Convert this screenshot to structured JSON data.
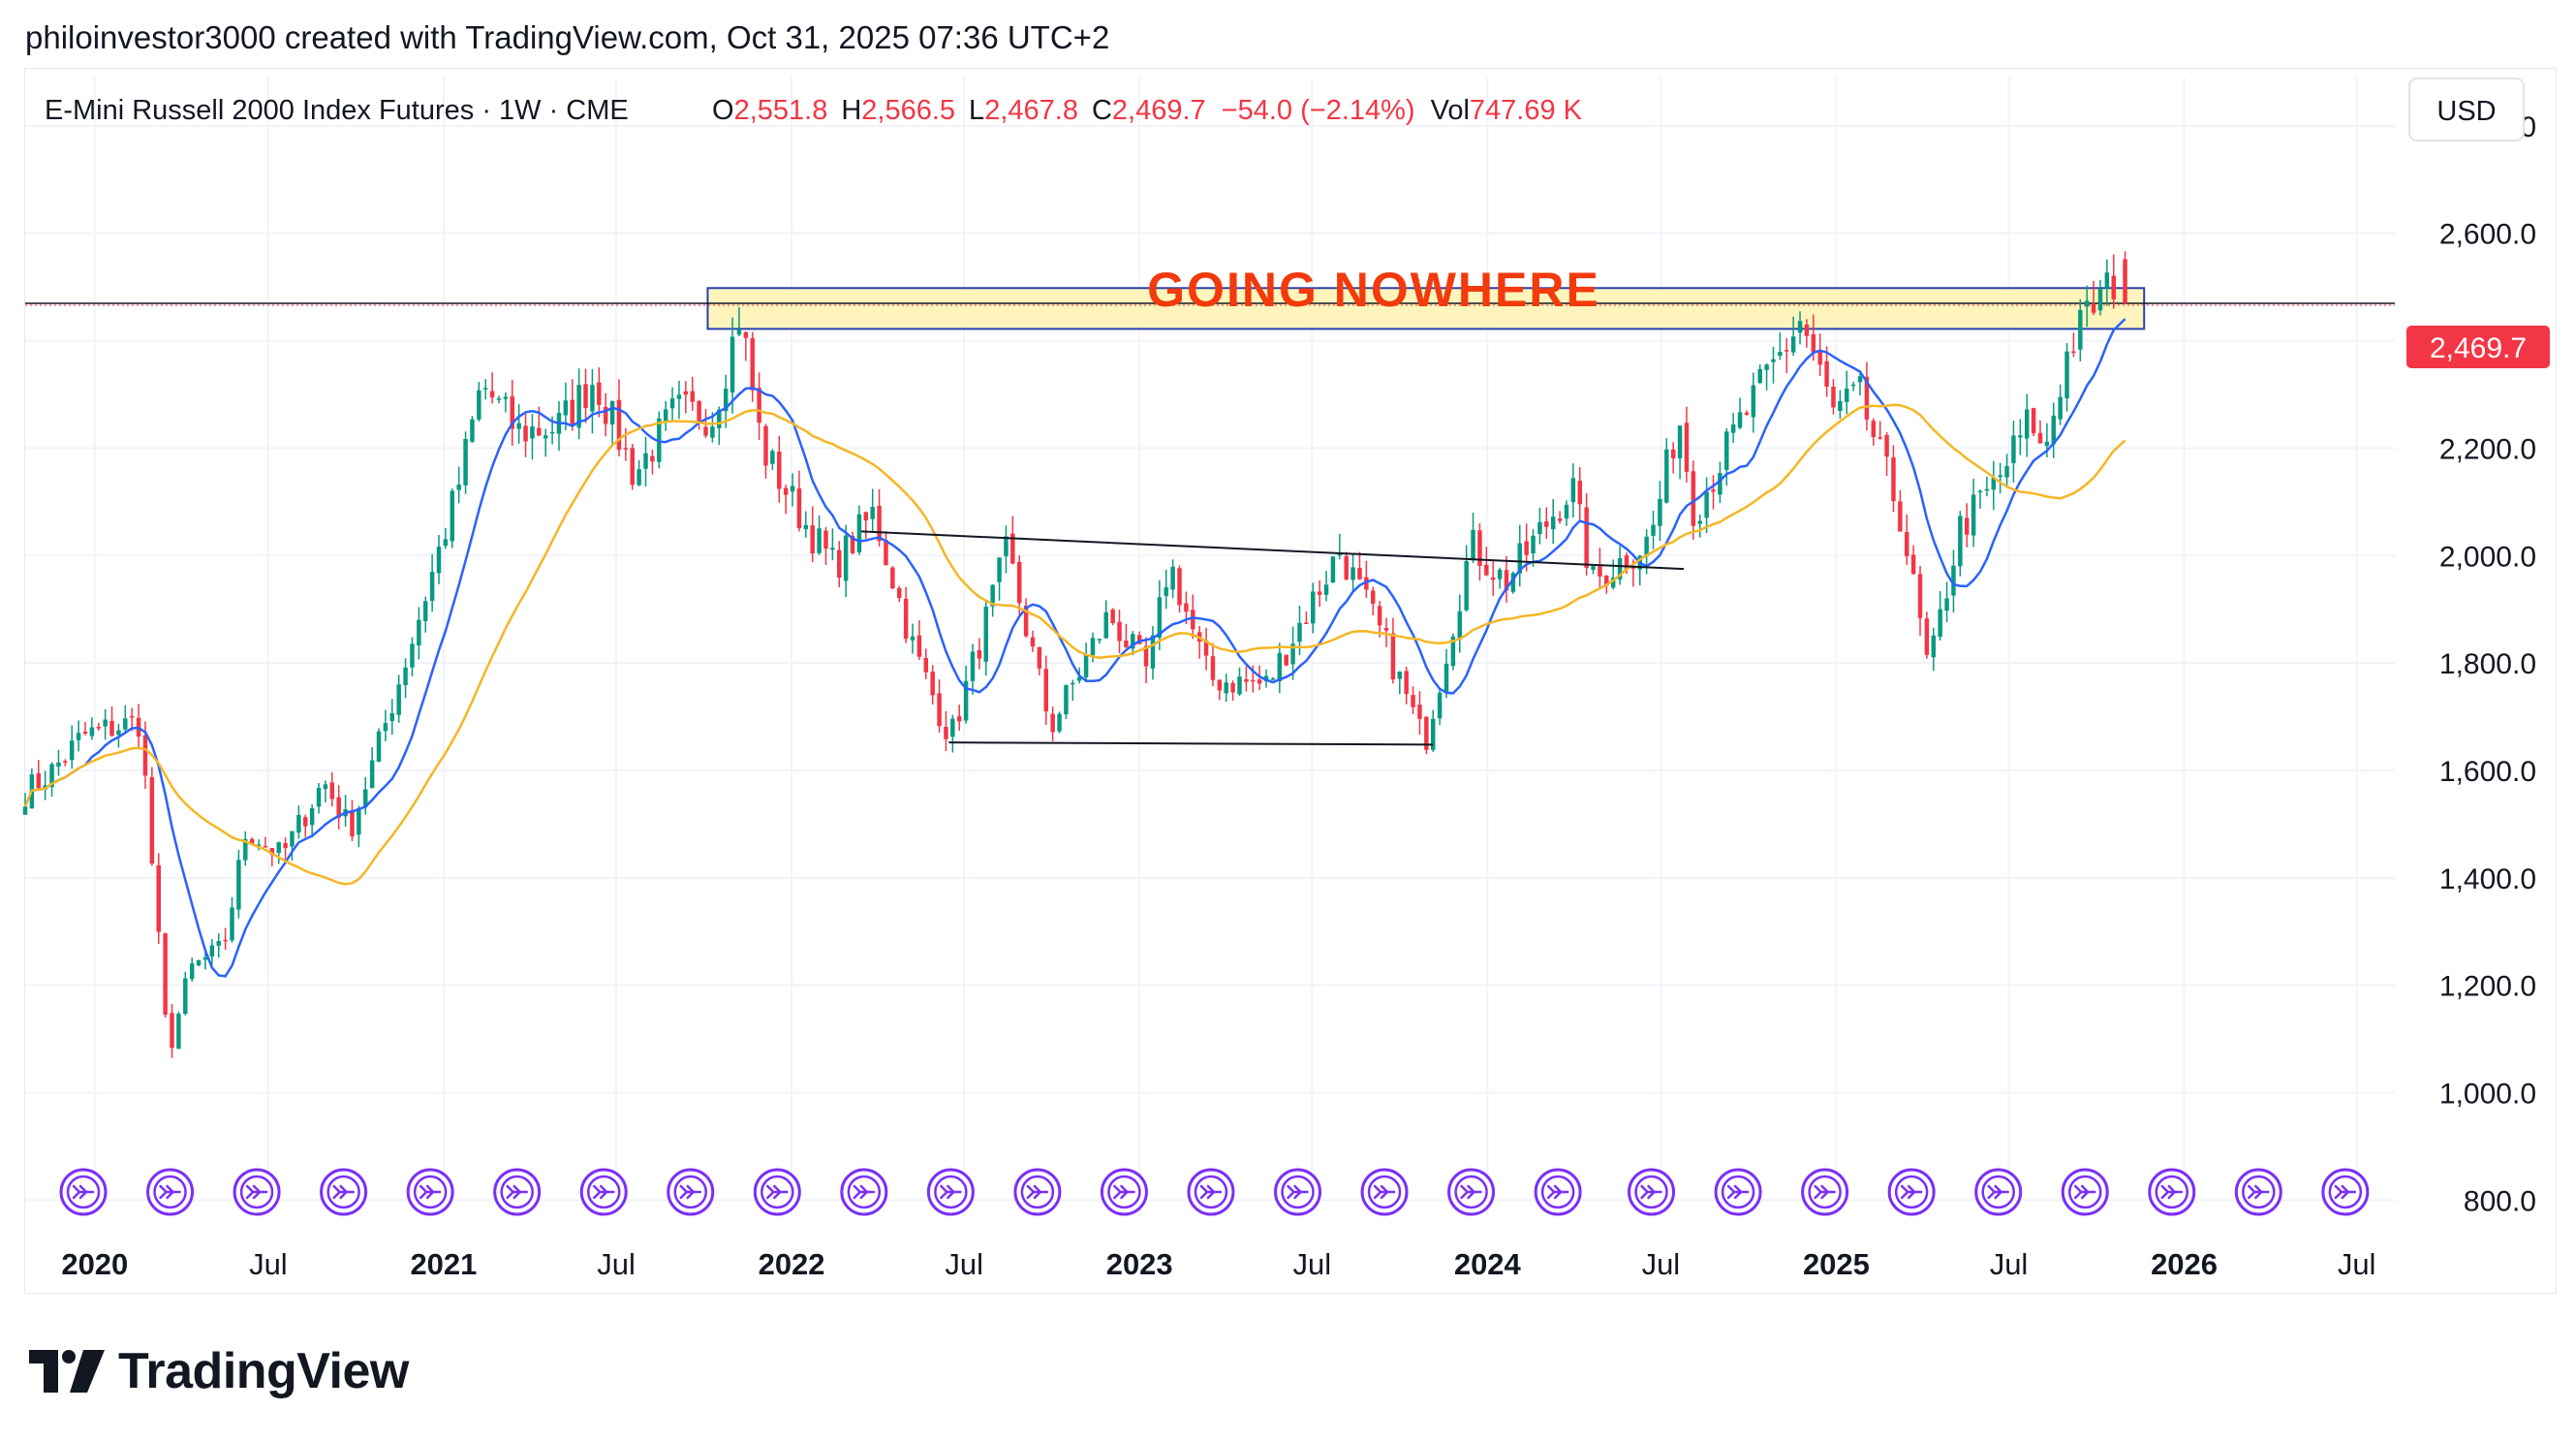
{
  "header": {
    "attribution": "philoinvestor3000 created with TradingView.com, Oct 31, 2025 07:36 UTC+2"
  },
  "legend": {
    "symbol": "E-Mini Russell 2000 Index Futures · 1W · CME",
    "o_label": "O",
    "o_value": "2,551.8",
    "h_label": "H",
    "h_value": "2,566.5",
    "l_label": "L",
    "l_value": "2,467.8",
    "c_label": "C",
    "c_value": "2,469.7",
    "change": "−54.0 (−2.14%)",
    "vol_label": "Vol",
    "vol_value": "747.69 K"
  },
  "currency_button": "USD",
  "annotation": {
    "text": "GOING NOWHERE",
    "color": "#f23a0c"
  },
  "price_tag": {
    "value": "2,469.7",
    "color": "#f23645"
  },
  "footer": {
    "brand": "TradingView"
  },
  "colors": {
    "up": "#089981",
    "down": "#f23645",
    "ma_fast": "#2962ff",
    "ma_slow": "#f5b625",
    "zone_fill": "#fff3b0",
    "zone_border": "#2a3fb0",
    "event_icon": "#7b2ff7"
  },
  "event_icon_name": "dividend-arrow-icon",
  "chart_data": {
    "type": "candlestick",
    "y_axis": {
      "ticks": [
        800,
        1000,
        1200,
        1400,
        1600,
        1800,
        2000,
        2200,
        2400,
        2600,
        2800
      ],
      "tick_labels": [
        "800.0",
        "1,000.0",
        "1,200.0",
        "1,400.0",
        "1,600.0",
        "1,800.0",
        "2,000.0",
        "2,200.0",
        "2,400.0",
        "2,600.0",
        "2,800.0"
      ],
      "range": [
        770,
        2890
      ]
    },
    "x_axis": {
      "range": [
        "2019-10-20",
        "2026-08-10"
      ],
      "ticks": [
        {
          "date": "2020-01-01",
          "label": "2020",
          "major": true
        },
        {
          "date": "2020-07-01",
          "label": "Jul",
          "major": false
        },
        {
          "date": "2021-01-01",
          "label": "2021",
          "major": true
        },
        {
          "date": "2021-07-01",
          "label": "Jul",
          "major": false
        },
        {
          "date": "2022-01-01",
          "label": "2022",
          "major": true
        },
        {
          "date": "2022-07-01",
          "label": "Jul",
          "major": false
        },
        {
          "date": "2023-01-01",
          "label": "2023",
          "major": true
        },
        {
          "date": "2023-07-01",
          "label": "Jul",
          "major": false
        },
        {
          "date": "2024-01-01",
          "label": "2024",
          "major": true
        },
        {
          "date": "2024-07-01",
          "label": "Jul",
          "major": false
        },
        {
          "date": "2025-01-01",
          "label": "2025",
          "major": true
        },
        {
          "date": "2025-07-01",
          "label": "Jul",
          "major": false
        },
        {
          "date": "2026-01-01",
          "label": "2026",
          "major": true
        },
        {
          "date": "2026-07-01",
          "label": "Jul",
          "major": false
        }
      ]
    },
    "close_anchors": [
      {
        "date": "2019-10-20",
        "close": 1560
      },
      {
        "date": "2019-11-15",
        "close": 1595
      },
      {
        "date": "2019-12-20",
        "close": 1665
      },
      {
        "date": "2020-01-20",
        "close": 1680
      },
      {
        "date": "2020-02-18",
        "close": 1690
      },
      {
        "date": "2020-02-28",
        "close": 1470
      },
      {
        "date": "2020-03-18",
        "close": 1070
      },
      {
        "date": "2020-04-10",
        "close": 1230
      },
      {
        "date": "2020-05-15",
        "close": 1270
      },
      {
        "date": "2020-06-08",
        "close": 1490
      },
      {
        "date": "2020-07-15",
        "close": 1440
      },
      {
        "date": "2020-08-28",
        "close": 1580
      },
      {
        "date": "2020-09-25",
        "close": 1490
      },
      {
        "date": "2020-10-20",
        "close": 1620
      },
      {
        "date": "2020-11-30",
        "close": 1850
      },
      {
        "date": "2021-01-15",
        "close": 2120
      },
      {
        "date": "2021-02-10",
        "close": 2320
      },
      {
        "date": "2021-03-20",
        "close": 2230
      },
      {
        "date": "2021-05-01",
        "close": 2240
      },
      {
        "date": "2021-06-08",
        "close": 2330
      },
      {
        "date": "2021-07-20",
        "close": 2150
      },
      {
        "date": "2021-09-01",
        "close": 2270
      },
      {
        "date": "2021-10-10",
        "close": 2260
      },
      {
        "date": "2021-11-08",
        "close": 2450
      },
      {
        "date": "2021-12-01",
        "close": 2200
      },
      {
        "date": "2022-01-15",
        "close": 2060
      },
      {
        "date": "2022-02-15",
        "close": 1980
      },
      {
        "date": "2022-03-28",
        "close": 2080
      },
      {
        "date": "2022-05-10",
        "close": 1820
      },
      {
        "date": "2022-06-17",
        "close": 1660
      },
      {
        "date": "2022-08-15",
        "close": 2010
      },
      {
        "date": "2022-09-30",
        "close": 1680
      },
      {
        "date": "2022-11-30",
        "close": 1890
      },
      {
        "date": "2023-01-10",
        "close": 1780
      },
      {
        "date": "2023-02-01",
        "close": 1990
      },
      {
        "date": "2023-03-15",
        "close": 1770
      },
      {
        "date": "2023-05-15",
        "close": 1760
      },
      {
        "date": "2023-07-30",
        "close": 2010
      },
      {
        "date": "2023-09-15",
        "close": 1840
      },
      {
        "date": "2023-10-27",
        "close": 1650
      },
      {
        "date": "2023-12-15",
        "close": 2020
      },
      {
        "date": "2024-01-20",
        "close": 1950
      },
      {
        "date": "2024-03-30",
        "close": 2130
      },
      {
        "date": "2024-04-20",
        "close": 1950
      },
      {
        "date": "2024-06-20",
        "close": 2030
      },
      {
        "date": "2024-07-20",
        "close": 2260
      },
      {
        "date": "2024-08-05",
        "close": 2080
      },
      {
        "date": "2024-09-20",
        "close": 2240
      },
      {
        "date": "2024-11-25",
        "close": 2440
      },
      {
        "date": "2024-12-30",
        "close": 2260
      },
      {
        "date": "2025-01-25",
        "close": 2300
      },
      {
        "date": "2025-03-10",
        "close": 2070
      },
      {
        "date": "2025-04-08",
        "close": 1780
      },
      {
        "date": "2025-05-10",
        "close": 2050
      },
      {
        "date": "2025-06-20",
        "close": 2140
      },
      {
        "date": "2025-07-25",
        "close": 2260
      },
      {
        "date": "2025-08-05",
        "close": 2180
      },
      {
        "date": "2025-09-01",
        "close": 2380
      },
      {
        "date": "2025-09-25",
        "close": 2460
      },
      {
        "date": "2025-10-15",
        "close": 2500
      },
      {
        "date": "2025-10-24",
        "close": 2524
      },
      {
        "date": "2025-10-31",
        "close": 2469.7
      }
    ],
    "last_bar": {
      "date": "2025-10-31",
      "open": 2551.8,
      "high": 2566.5,
      "low": 2467.8,
      "close": 2469.7
    },
    "moving_averages": [
      {
        "window_weeks": 10,
        "color": "#2962ff"
      },
      {
        "window_weeks": 30,
        "color": "#f5b625"
      }
    ],
    "resistance_zone": {
      "start": "2021-10-05",
      "end": "2025-11-20",
      "low": 2422,
      "high": 2498
    },
    "current_price_line": 2469.7,
    "trendlines": [
      {
        "from": {
          "date": "2022-03-15",
          "value": 2045
        },
        "to": {
          "date": "2024-07-25",
          "value": 1975
        }
      },
      {
        "from": {
          "date": "2022-06-15",
          "value": 1652
        },
        "to": {
          "date": "2023-11-05",
          "value": 1648
        }
      }
    ],
    "event_markers": [
      "2019-12-20",
      "2020-03-20",
      "2020-06-19",
      "2020-09-18",
      "2020-12-18",
      "2021-03-19",
      "2021-06-18",
      "2021-09-17",
      "2021-12-17",
      "2022-03-18",
      "2022-06-17",
      "2022-09-16",
      "2022-12-16",
      "2023-03-17",
      "2023-06-16",
      "2023-09-15",
      "2023-12-15",
      "2024-03-15",
      "2024-06-21",
      "2024-09-20",
      "2024-12-20",
      "2025-03-21",
      "2025-06-20",
      "2025-09-19",
      "2025-12-19",
      "2026-03-20",
      "2026-06-19"
    ]
  }
}
